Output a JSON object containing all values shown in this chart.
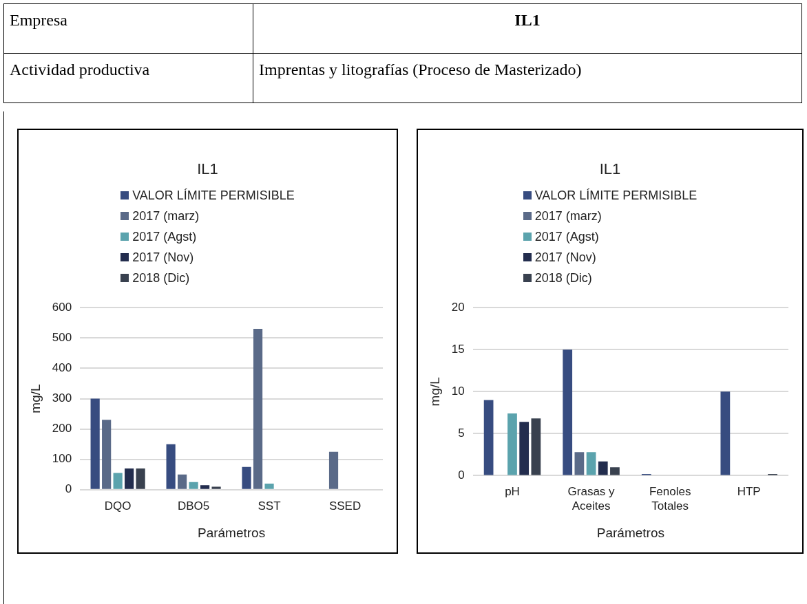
{
  "chart_data": [
    {
      "type": "other",
      "annotations": [
        "Empresa",
        "IL1",
        "Actividad productiva",
        "Imprentas y litografías (Proceso de Masterizado)"
      ]
    },
    {
      "type": "bar",
      "title": "IL1",
      "xlabel": "Parámetros",
      "ylabel": "mg/L",
      "categories": [
        "DQO",
        "DBO5",
        "SST",
        "SSED"
      ],
      "series": [
        {
          "name": "VALOR LÍMITE PERMISIBLE",
          "color": "#374c80",
          "values": [
            300,
            150,
            75,
            null
          ]
        },
        {
          "name": "2017 (marz)",
          "color": "#5a6a88",
          "values": [
            230,
            50,
            530,
            125
          ]
        },
        {
          "name": "2017 (Agst)",
          "color": "#5ba3ad",
          "values": [
            55,
            25,
            20,
            null
          ]
        },
        {
          "name": "2017 (Nov)",
          "color": "#232d4e",
          "values": [
            70,
            15,
            null,
            null
          ]
        },
        {
          "name": "2018 (Dic)",
          "color": "#39414f",
          "values": [
            70,
            10,
            null,
            null
          ]
        }
      ],
      "ylim": [
        0,
        600
      ],
      "yticks": [
        0,
        100,
        200,
        300,
        400,
        500,
        600
      ],
      "grid": "y",
      "legend": "top"
    },
    {
      "type": "bar",
      "title": "IL1",
      "xlabel": "Parámetros",
      "ylabel": "mg/L",
      "categories": [
        "pH",
        "Grasas y Aceites",
        "Fenoles Totales",
        "HTP"
      ],
      "series": [
        {
          "name": "VALOR LÍMITE PERMISIBLE",
          "color": "#374c80",
          "values": [
            9,
            15,
            0.2,
            10
          ]
        },
        {
          "name": "2017 (marz)",
          "color": "#5a6a88",
          "values": [
            null,
            2.8,
            null,
            null
          ]
        },
        {
          "name": "2017 (Agst)",
          "color": "#5ba3ad",
          "values": [
            7.4,
            2.8,
            null,
            null
          ]
        },
        {
          "name": "2017 (Nov)",
          "color": "#232d4e",
          "values": [
            6.4,
            1.7,
            null,
            null
          ]
        },
        {
          "name": "2018 (Dic)",
          "color": "#39414f",
          "values": [
            6.8,
            1.0,
            null,
            0.2
          ]
        }
      ],
      "ylim": [
        0,
        20
      ],
      "yticks": [
        0,
        5,
        10,
        15,
        20
      ],
      "grid": "y",
      "legend": "top"
    }
  ]
}
